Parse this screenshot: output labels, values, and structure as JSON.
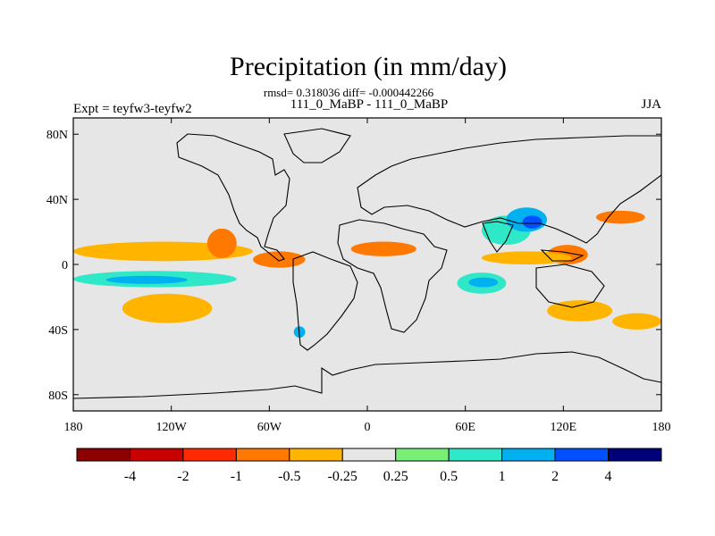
{
  "chart_data": {
    "type": "heatmap",
    "title": "Precipitation (in mm/day)",
    "stats": "rmsd= 0.318036 diff= -0.000442266",
    "runs": "111_0_MaBP - 111_0_MaBP",
    "expt": "Expt = teyfw3-teyfw2",
    "season": "JJA",
    "xlim": [
      -180,
      180
    ],
    "ylim": [
      -90,
      90
    ],
    "x_ticks": [
      {
        "value": -180,
        "label": "180"
      },
      {
        "value": -120,
        "label": "120W"
      },
      {
        "value": -60,
        "label": "60W"
      },
      {
        "value": 0,
        "label": "0"
      },
      {
        "value": 60,
        "label": "60E"
      },
      {
        "value": 120,
        "label": "120E"
      },
      {
        "value": 180,
        "label": "180"
      }
    ],
    "y_ticks": [
      {
        "value": 80,
        "label": "80N"
      },
      {
        "value": 40,
        "label": "40N"
      },
      {
        "value": 0,
        "label": "0"
      },
      {
        "value": -40,
        "label": "40S"
      },
      {
        "value": -80,
        "label": "80S"
      }
    ],
    "colorbar": {
      "colors": [
        "#8b0000",
        "#c80000",
        "#ff2a00",
        "#ff7800",
        "#ffb400",
        "#e6e6e6",
        "#78f078",
        "#2ee8c8",
        "#00b0f0",
        "#0050ff",
        "#00007a"
      ],
      "labels": [
        "-4",
        "-2",
        "-1",
        "-0.5",
        "-0.25",
        "0.25",
        "0.5",
        "1",
        "2",
        "4"
      ]
    },
    "background_color": "#e6e6e6",
    "features": [
      {
        "name": "itcz-pacific-north",
        "lon": [
          -180,
          -70
        ],
        "lat": [
          2,
          14
        ],
        "value": -0.4
      },
      {
        "name": "central-america-core",
        "lon": [
          -98,
          -80
        ],
        "lat": [
          4,
          22
        ],
        "value": -0.8
      },
      {
        "name": "south-pacific-band",
        "lon": [
          -180,
          -80
        ],
        "lat": [
          -14,
          -4
        ],
        "value": 0.7
      },
      {
        "name": "south-pacific-band-inner",
        "lon": [
          -160,
          -110
        ],
        "lat": [
          -12,
          -7
        ],
        "value": 1.2
      },
      {
        "name": "south-pacific-dry",
        "lon": [
          -150,
          -95
        ],
        "lat": [
          -36,
          -18
        ],
        "value": -0.4
      },
      {
        "name": "amazon-dry",
        "lon": [
          -70,
          -38
        ],
        "lat": [
          -2,
          8
        ],
        "value": -0.5
      },
      {
        "name": "sahel-dry",
        "lon": [
          -10,
          30
        ],
        "lat": [
          5,
          14
        ],
        "value": -0.6
      },
      {
        "name": "india-wet",
        "lon": [
          70,
          100
        ],
        "lat": [
          12,
          30
        ],
        "value": 0.6
      },
      {
        "name": "tibet-wet",
        "lon": [
          85,
          110
        ],
        "lat": [
          20,
          35
        ],
        "value": 1.2
      },
      {
        "name": "tibet-core",
        "lon": [
          95,
          107
        ],
        "lat": [
          22,
          30
        ],
        "value": 2.5
      },
      {
        "name": "china-dry",
        "lon": [
          110,
          135
        ],
        "lat": [
          0,
          12
        ],
        "value": -0.6
      },
      {
        "name": "indian-ocean-wet",
        "lon": [
          55,
          85
        ],
        "lat": [
          -18,
          -5
        ],
        "value": 0.7
      },
      {
        "name": "indian-ocean-core",
        "lon": [
          62,
          80
        ],
        "lat": [
          -14,
          -8
        ],
        "value": 1.4
      },
      {
        "name": "east-asia-wet",
        "lon": [
          70,
          125
        ],
        "lat": [
          0,
          8
        ],
        "value": -0.4
      },
      {
        "name": "north-pacific-dry",
        "lon": [
          140,
          170
        ],
        "lat": [
          25,
          33
        ],
        "value": -0.6
      },
      {
        "name": "south-indian-dry",
        "lon": [
          110,
          150
        ],
        "lat": [
          -35,
          -22
        ],
        "value": -0.3
      },
      {
        "name": "southern-ocean-dry",
        "lon": [
          150,
          180
        ],
        "lat": [
          -40,
          -30
        ],
        "value": -0.4
      },
      {
        "name": "andes-spot",
        "lon": [
          -45,
          -38
        ],
        "lat": [
          -45,
          -38
        ],
        "value": 1.1
      }
    ]
  }
}
